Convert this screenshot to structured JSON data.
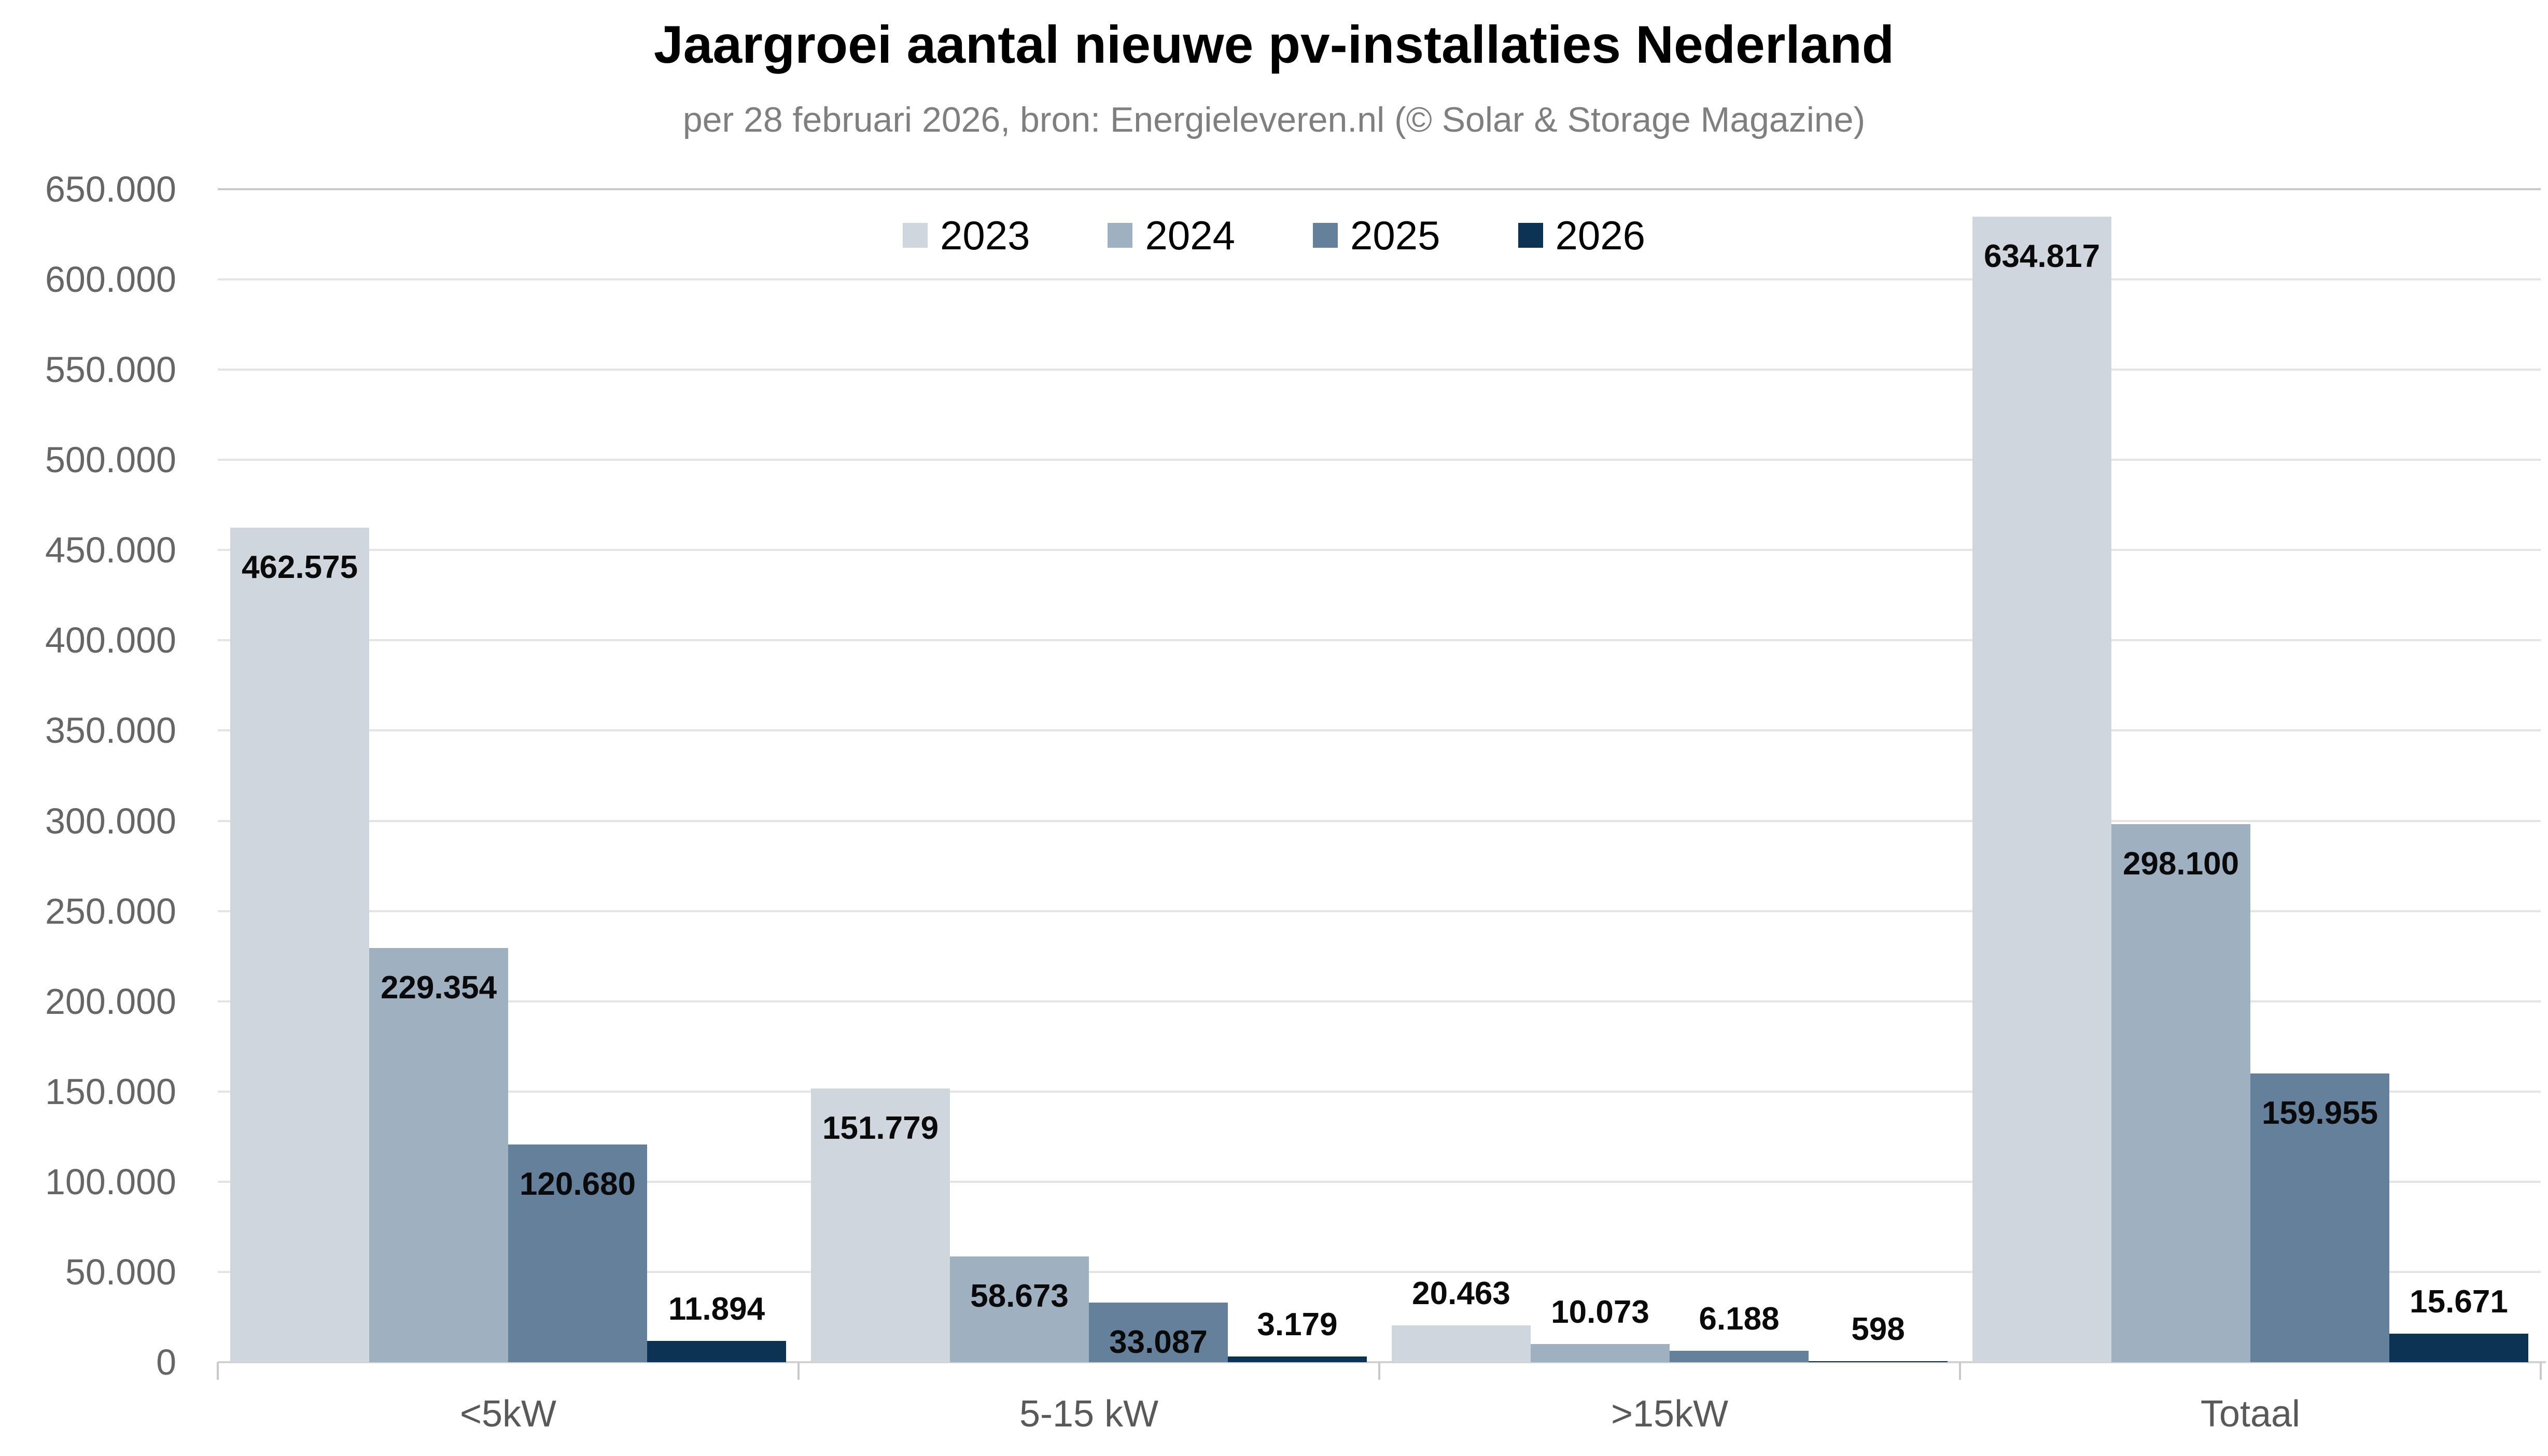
{
  "chart_data": {
    "type": "bar",
    "title": "Jaargroei aantal nieuwe pv-installaties Nederland",
    "subtitle": "per 28 februari 2026, bron: Energieleveren.nl (© Solar & Storage Magazine)",
    "categories": [
      "<5kW",
      "5-15 kW",
      ">15kW",
      "Totaal"
    ],
    "series": [
      {
        "name": "2023",
        "color": "#cfd6dd",
        "values": [
          462575,
          151779,
          20463,
          634817
        ],
        "labels": [
          "462.575",
          "151.779",
          "20.463",
          "634.817"
        ]
      },
      {
        "name": "2024",
        "color": "#9fb0c0",
        "values": [
          229354,
          58673,
          10073,
          298100
        ],
        "labels": [
          "229.354",
          "58.673",
          "10.073",
          "298.100"
        ]
      },
      {
        "name": "2025",
        "color": "#64809b",
        "values": [
          120680,
          33087,
          6188,
          159955
        ],
        "labels": [
          "120.680",
          "33.087",
          "6.188",
          "159.955"
        ]
      },
      {
        "name": "2026",
        "color": "#0d3354",
        "values": [
          11894,
          3179,
          598,
          15671
        ],
        "labels": [
          "11.894",
          "3.179",
          "598",
          "15.671"
        ]
      }
    ],
    "ylim": [
      0,
      650000
    ],
    "ytick_step": 50000,
    "ytick_labels": [
      "0",
      "50.000",
      "100.000",
      "150.000",
      "200.000",
      "250.000",
      "300.000",
      "350.000",
      "400.000",
      "450.000",
      "500.000",
      "550.000",
      "600.000",
      "650.000"
    ],
    "grid": true,
    "legend_position": "top-center",
    "xlabel": "",
    "ylabel": ""
  }
}
